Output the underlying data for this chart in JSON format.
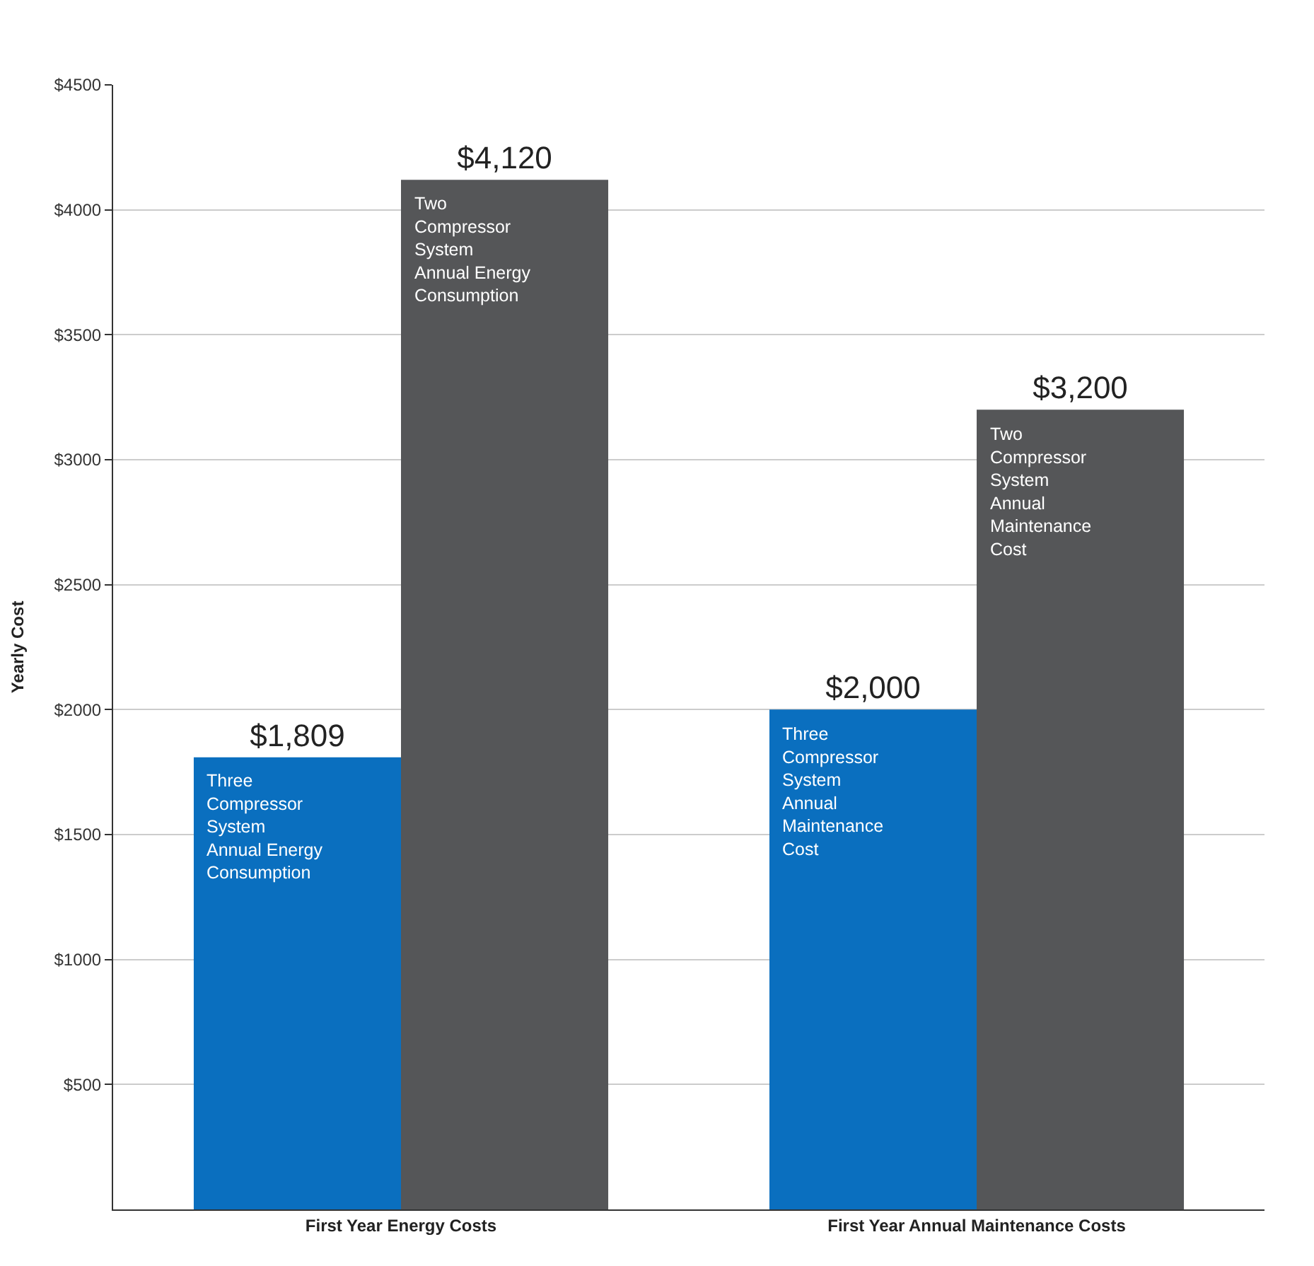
{
  "chart_data": {
    "type": "bar",
    "ylabel": "Yearly Cost",
    "categories": [
      "First Year Energy Costs",
      "First Year Annual Maintenance Costs"
    ],
    "series": [
      {
        "color": "#0a6fbf",
        "values": [
          1809,
          2000
        ],
        "value_labels": [
          "$1,809",
          "$2,000"
        ]
      },
      {
        "color": "#555658",
        "values": [
          4120,
          3200
        ],
        "value_labels": [
          "$4,120",
          "$3,200"
        ]
      }
    ],
    "annotations": [
      "Three\nCompressor\nSystem\nAnnual Energy\nConsumption",
      "Two\nCompressor\nSystem\nAnnual Energy\nConsumption",
      "Three\nCompressor\nSystem\nAnnual\nMaintenance\nCost",
      "Two\nCompressor\nSystem\nAnnual\nMaintenance\nCost"
    ],
    "ylim": [
      0,
      4500
    ],
    "yticks": [
      {
        "value": 500,
        "label": "$500"
      },
      {
        "value": 1000,
        "label": "$1000"
      },
      {
        "value": 1500,
        "label": "$1500"
      },
      {
        "value": 2000,
        "label": "$2000"
      },
      {
        "value": 2500,
        "label": "$2500"
      },
      {
        "value": 3000,
        "label": "$3000"
      },
      {
        "value": 3500,
        "label": "$3500"
      },
      {
        "value": 4000,
        "label": "$4000"
      },
      {
        "value": 4500,
        "label": "$4500"
      }
    ],
    "grid": "y"
  }
}
